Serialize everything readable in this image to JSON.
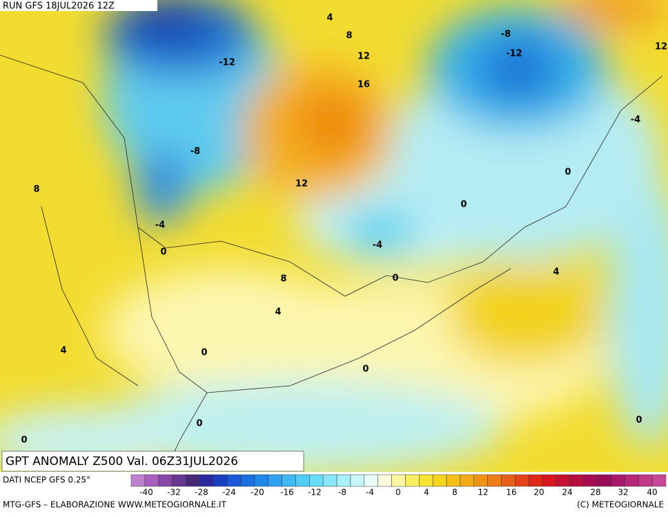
{
  "header": {
    "run": "RUN GFS 18JUL2026 12Z"
  },
  "map": {
    "contour_labels": [
      4,
      8,
      12,
      16,
      -12,
      -8,
      -12,
      12,
      -4,
      -8,
      8,
      12,
      0,
      0,
      -4,
      0,
      -4,
      0,
      8,
      4,
      4,
      4,
      0,
      0,
      0,
      0,
      0
    ]
  },
  "footer": {
    "title": "GPT ANOMALY Z500 Val. 06Z31JUL2026",
    "source": "DATI NCEP GFS 0.25°",
    "credit": "MTG-GFS – ELABORAZIONE WWW.METEOGIORNALE.IT",
    "copyright": "(C) METEOGIORNALE"
  },
  "colorbar": {
    "ticks": [
      -40,
      -32,
      -28,
      -24,
      -20,
      -16,
      -12,
      -8,
      -4,
      0,
      4,
      8,
      12,
      16,
      20,
      24,
      28,
      32,
      40
    ]
  }
}
